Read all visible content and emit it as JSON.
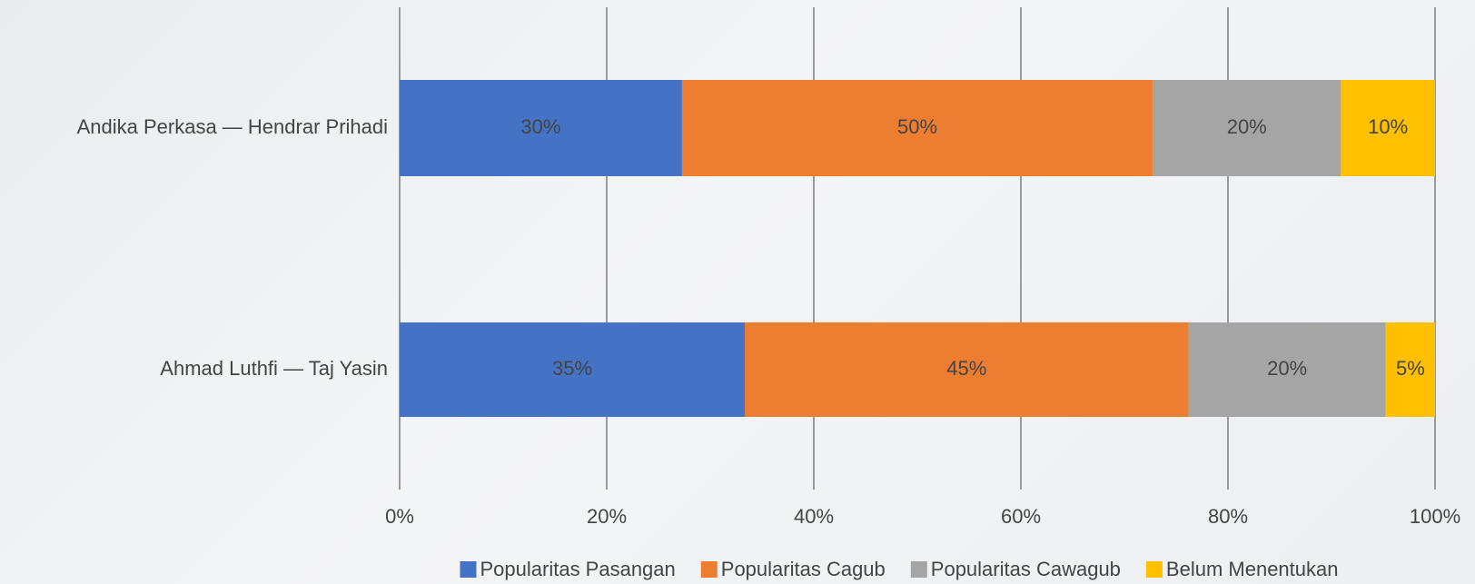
{
  "chart_data": {
    "type": "bar",
    "orientation": "horizontal",
    "stacking": "percent",
    "categories": [
      "Andika Perkasa — Hendrar Prihadi",
      "Ahmad Luthfi — Taj Yasin"
    ],
    "series": [
      {
        "name": "Popularitas Pasangan",
        "color": "#4472c4",
        "values": [
          30,
          35
        ],
        "value_labels": [
          "30%",
          "35%"
        ]
      },
      {
        "name": "Popularitas Cagub",
        "color": "#ed7d31",
        "values": [
          50,
          45
        ],
        "value_labels": [
          "50%",
          "45%"
        ]
      },
      {
        "name": "Popularitas Cawagub",
        "color": "#a5a5a5",
        "values": [
          20,
          20
        ],
        "value_labels": [
          "20%",
          "20%"
        ]
      },
      {
        "name": "Belum Menentukan",
        "color": "#ffc000",
        "values": [
          10,
          5
        ],
        "value_labels": [
          "10%",
          "5%"
        ]
      }
    ],
    "xlim": [
      0,
      100
    ],
    "xticks": [
      {
        "value": 0,
        "label": "0%"
      },
      {
        "value": 20,
        "label": "20%"
      },
      {
        "value": 40,
        "label": "40%"
      },
      {
        "value": 60,
        "label": "60%"
      },
      {
        "value": 80,
        "label": "80%"
      },
      {
        "value": 100,
        "label": "100%"
      }
    ],
    "grid": true,
    "legend": "bottom"
  }
}
